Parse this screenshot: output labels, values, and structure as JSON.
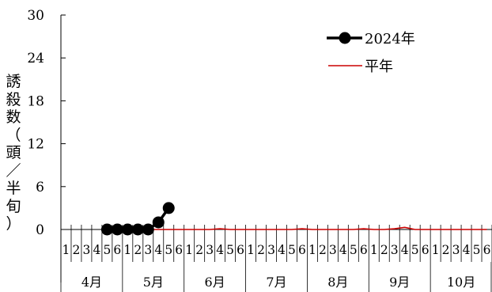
{
  "chart_data": {
    "type": "line",
    "ylabel_chars": [
      "誘",
      "殺",
      "数",
      "（",
      "頭",
      "／",
      "半",
      "旬",
      "）"
    ],
    "ylim": [
      0,
      30
    ],
    "y_ticks": [
      "0",
      "6",
      "12",
      "18",
      "24",
      "30"
    ],
    "x_tick_labels": [
      "1",
      "2",
      "3",
      "4",
      "5",
      "6",
      "1",
      "2",
      "3",
      "4",
      "5",
      "6",
      "1",
      "2",
      "3",
      "4",
      "5",
      "6",
      "1",
      "2",
      "3",
      "4",
      "5",
      "6",
      "1",
      "2",
      "3",
      "4",
      "5",
      "6",
      "1",
      "2",
      "3",
      "4",
      "5",
      "6",
      "1",
      "2",
      "3",
      "4",
      "5",
      "6"
    ],
    "months": [
      "4月",
      "5月",
      "6月",
      "7月",
      "8月",
      "9月",
      "10月"
    ],
    "series": [
      {
        "name": "2024年",
        "color": "#000000",
        "marker": "circle",
        "points": [
          {
            "period": 5,
            "value": 0
          },
          {
            "period": 6,
            "value": 0
          },
          {
            "period": 7,
            "value": 0
          },
          {
            "period": 8,
            "value": 0
          },
          {
            "period": 9,
            "value": 0
          },
          {
            "period": 10,
            "value": 1
          },
          {
            "period": 11,
            "value": 3
          }
        ]
      },
      {
        "name": "平年",
        "color": "#cc0000",
        "marker": "none",
        "points": [
          {
            "period": 5,
            "value": 0
          },
          {
            "period": 6,
            "value": 0
          },
          {
            "period": 7,
            "value": 0
          },
          {
            "period": 8,
            "value": 0
          },
          {
            "period": 9,
            "value": 0
          },
          {
            "period": 10,
            "value": 0
          },
          {
            "period": 11,
            "value": 0
          },
          {
            "period": 12,
            "value": 0
          },
          {
            "period": 13,
            "value": 0
          },
          {
            "period": 14,
            "value": 0
          },
          {
            "period": 15,
            "value": 0
          },
          {
            "period": 16,
            "value": 0.1
          },
          {
            "period": 17,
            "value": 0
          },
          {
            "period": 18,
            "value": 0
          },
          {
            "period": 19,
            "value": 0
          },
          {
            "period": 20,
            "value": 0
          },
          {
            "period": 21,
            "value": 0
          },
          {
            "period": 22,
            "value": 0
          },
          {
            "period": 23,
            "value": 0
          },
          {
            "period": 24,
            "value": 0.1
          },
          {
            "period": 25,
            "value": 0
          },
          {
            "period": 26,
            "value": 0
          },
          {
            "period": 27,
            "value": 0
          },
          {
            "period": 28,
            "value": 0
          },
          {
            "period": 29,
            "value": 0
          },
          {
            "period": 30,
            "value": 0.1
          },
          {
            "period": 31,
            "value": 0
          },
          {
            "period": 32,
            "value": 0
          },
          {
            "period": 33,
            "value": 0.1
          },
          {
            "period": 34,
            "value": 0.3
          },
          {
            "period": 35,
            "value": 0
          },
          {
            "period": 36,
            "value": 0
          },
          {
            "period": 37,
            "value": 0
          },
          {
            "period": 38,
            "value": 0
          },
          {
            "period": 39,
            "value": 0
          },
          {
            "period": 40,
            "value": 0
          },
          {
            "period": 41,
            "value": 0
          },
          {
            "period": 42,
            "value": 0
          }
        ]
      }
    ],
    "legend": [
      "2024年",
      "平年"
    ],
    "legend_position": "top-right",
    "grid": false
  }
}
